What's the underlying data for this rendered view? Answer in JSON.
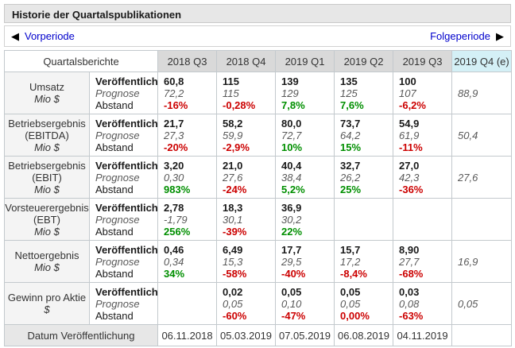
{
  "header": {
    "title": "Historie der Quartalspublikationen"
  },
  "nav": {
    "prev_label": "Vorperiode",
    "next_label": "Folgeperiode",
    "prev_arrow": "◀",
    "next_arrow": "▶"
  },
  "colors": {
    "positive": "#008f00",
    "negative": "#cc0000",
    "estimate_header_bg": "#d4f0f6",
    "quarter_header_bg": "#d9d9d9",
    "link": "#0000cc"
  },
  "table": {
    "corner_label": "Quartalsberichte",
    "columns": [
      "2018 Q3",
      "2018 Q4",
      "2019 Q1",
      "2019 Q2",
      "2019 Q3",
      "2019 Q4 (e)"
    ],
    "sub_labels": [
      "Veröffentlicht",
      "Prognose",
      "Abstand"
    ],
    "rows": [
      {
        "name": "Umsatz",
        "unit": "Mio $",
        "published": [
          "60,8",
          "115",
          "139",
          "135",
          "100",
          ""
        ],
        "forecast": [
          "72,2",
          "115",
          "129",
          "125",
          "107",
          "88,9"
        ],
        "gap": [
          {
            "text": "-16%",
            "tone": "neg"
          },
          {
            "text": "-0,28%",
            "tone": "neg"
          },
          {
            "text": "7,8%",
            "tone": "pos"
          },
          {
            "text": "7,6%",
            "tone": "pos"
          },
          {
            "text": "-6,2%",
            "tone": "neg"
          },
          {
            "text": "",
            "tone": ""
          }
        ]
      },
      {
        "name": "Betriebsergebnis (EBITDA)",
        "unit": "Mio $",
        "published": [
          "21,7",
          "58,2",
          "80,0",
          "73,7",
          "54,9",
          ""
        ],
        "forecast": [
          "27,3",
          "59,9",
          "72,7",
          "64,2",
          "61,9",
          "50,4"
        ],
        "gap": [
          {
            "text": "-20%",
            "tone": "neg"
          },
          {
            "text": "-2,9%",
            "tone": "neg"
          },
          {
            "text": "10%",
            "tone": "pos"
          },
          {
            "text": "15%",
            "tone": "pos"
          },
          {
            "text": "-11%",
            "tone": "neg"
          },
          {
            "text": "",
            "tone": ""
          }
        ]
      },
      {
        "name": "Betriebsergebnis (EBIT)",
        "unit": "Mio $",
        "published": [
          "3,20",
          "21,0",
          "40,4",
          "32,7",
          "27,0",
          ""
        ],
        "forecast": [
          "0,30",
          "27,6",
          "38,4",
          "26,2",
          "42,3",
          "27,6"
        ],
        "gap": [
          {
            "text": "983%",
            "tone": "pos"
          },
          {
            "text": "-24%",
            "tone": "neg"
          },
          {
            "text": "5,2%",
            "tone": "pos"
          },
          {
            "text": "25%",
            "tone": "pos"
          },
          {
            "text": "-36%",
            "tone": "neg"
          },
          {
            "text": "",
            "tone": ""
          }
        ]
      },
      {
        "name": "Vorsteuerergebnis (EBT)",
        "unit": "Mio $",
        "published": [
          "2,78",
          "18,3",
          "36,9",
          "",
          "",
          ""
        ],
        "forecast": [
          "-1,79",
          "30,1",
          "30,2",
          "",
          "",
          ""
        ],
        "gap": [
          {
            "text": "256%",
            "tone": "pos"
          },
          {
            "text": "-39%",
            "tone": "neg"
          },
          {
            "text": "22%",
            "tone": "pos"
          },
          {
            "text": "",
            "tone": ""
          },
          {
            "text": "",
            "tone": ""
          },
          {
            "text": "",
            "tone": ""
          }
        ]
      },
      {
        "name": "Nettoergebnis",
        "unit": "Mio $",
        "published": [
          "0,46",
          "6,49",
          "17,7",
          "15,7",
          "8,90",
          ""
        ],
        "forecast": [
          "0,34",
          "15,3",
          "29,5",
          "17,2",
          "27,7",
          "16,9"
        ],
        "gap": [
          {
            "text": "34%",
            "tone": "pos"
          },
          {
            "text": "-58%",
            "tone": "neg"
          },
          {
            "text": "-40%",
            "tone": "neg"
          },
          {
            "text": "-8,4%",
            "tone": "neg"
          },
          {
            "text": "-68%",
            "tone": "neg"
          },
          {
            "text": "",
            "tone": ""
          }
        ]
      },
      {
        "name": "Gewinn pro Aktie",
        "unit": "$",
        "published": [
          "",
          "0,02",
          "0,05",
          "0,05",
          "0,03",
          ""
        ],
        "forecast": [
          "",
          "0,05",
          "0,10",
          "0,05",
          "0,08",
          "0,05"
        ],
        "gap": [
          {
            "text": "",
            "tone": ""
          },
          {
            "text": "-60%",
            "tone": "neg"
          },
          {
            "text": "-47%",
            "tone": "neg"
          },
          {
            "text": "0,00%",
            "tone": "neg"
          },
          {
            "text": "-63%",
            "tone": "neg"
          },
          {
            "text": "",
            "tone": ""
          }
        ]
      }
    ],
    "footer": {
      "label": "Datum Veröffentlichung",
      "dates": [
        "06.11.2018",
        "05.03.2019",
        "07.05.2019",
        "06.08.2019",
        "04.11.2019",
        ""
      ]
    }
  }
}
